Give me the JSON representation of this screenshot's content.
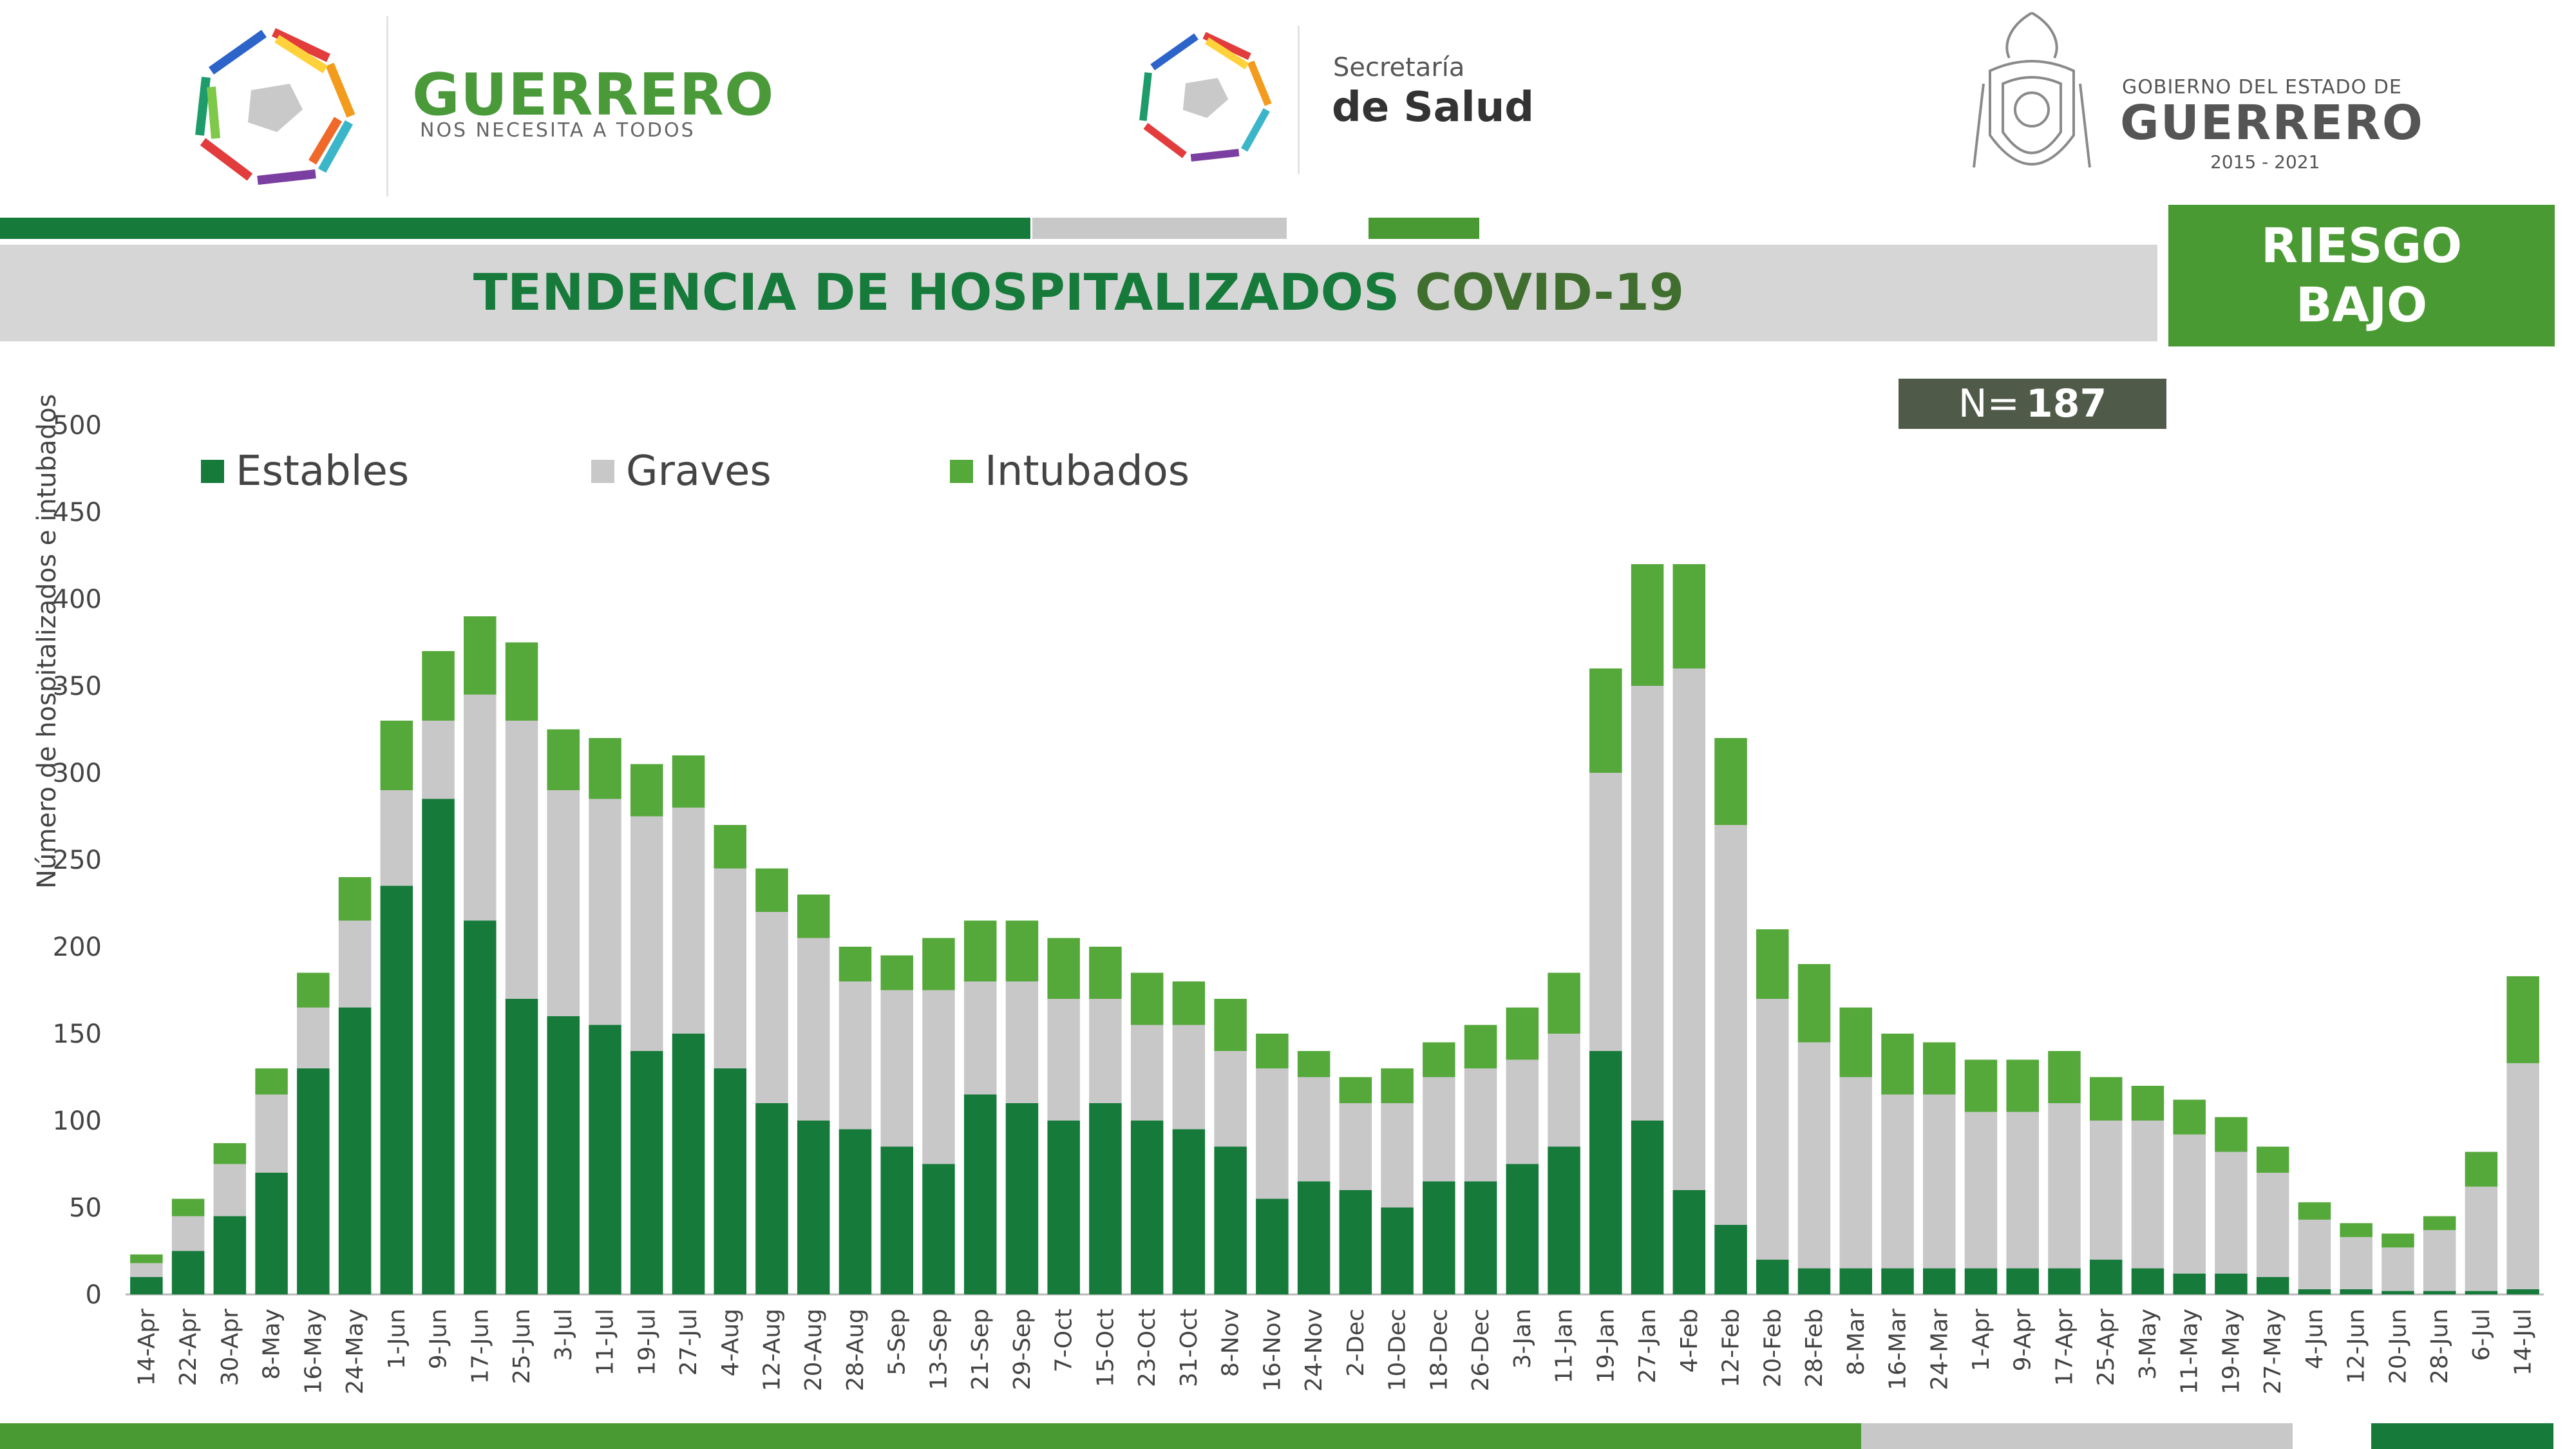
{
  "header": {
    "brand_title": "GUERRERO",
    "brand_subtitle": "NOS NECESITA A TODOS",
    "salud_line1": "Secretaría",
    "salud_line2": "de Salud",
    "gob_line1": "GOBIERNO DEL ESTADO DE",
    "gob_line2": "GUERRERO",
    "gob_years": "2015 - 2021"
  },
  "title_part1": "TENDENCIA DE HOSPITALIZADOS",
  "title_part2": "COVID-19",
  "risk_line1": "RIESGO",
  "risk_line2": "BAJO",
  "n_label": "N=",
  "n_value": "187",
  "colors": {
    "estables": "#157a3a",
    "graves": "#c8c8c8",
    "intubados": "#55a83a",
    "title_band": "#d6d6d6",
    "risk": "#4a9a33"
  },
  "chart_data": {
    "type": "bar",
    "stacked": true,
    "ylabel": "Número de hospitalizados e intubados",
    "ylim": [
      0,
      500
    ],
    "yticks": [
      0,
      50,
      100,
      150,
      200,
      250,
      300,
      350,
      400,
      450,
      500
    ],
    "xtick_labels": [
      "14-Apr",
      "22-Apr",
      "30-Apr",
      "8-May",
      "16-May",
      "24-May",
      "1-Jun",
      "9-Jun",
      "17-Jun",
      "25-Jun",
      "3-Jul",
      "11-Jul",
      "19-Jul",
      "27-Jul",
      "4-Aug",
      "12-Aug",
      "20-Aug",
      "28-Aug",
      "5-Sep",
      "13-Sep",
      "21-Sep",
      "29-Sep",
      "7-Oct",
      "15-Oct",
      "23-Oct",
      "31-Oct",
      "8-Nov",
      "16-Nov",
      "24-Nov",
      "2-Dec",
      "10-Dec",
      "18-Dec",
      "26-Dec",
      "3-Jan",
      "11-Jan",
      "19-Jan",
      "27-Jan",
      "4-Feb",
      "12-Feb",
      "20-Feb",
      "28-Feb",
      "8-Mar",
      "16-Mar",
      "24-Mar",
      "1-Apr",
      "9-Apr",
      "17-Apr",
      "25-Apr",
      "3-May",
      "11-May",
      "19-May",
      "27-May",
      "4-Jun",
      "12-Jun",
      "20-Jun",
      "28-Jun",
      "6-Jul",
      "14-Jul"
    ],
    "legend": [
      "Estables",
      "Graves",
      "Intubados"
    ],
    "legend_position": "top-left",
    "series": [
      {
        "name": "Estables",
        "values": [
          10,
          25,
          45,
          70,
          130,
          165,
          235,
          285,
          215,
          170,
          160,
          155,
          140,
          150,
          130,
          110,
          100,
          95,
          85,
          75,
          115,
          110,
          100,
          110,
          100,
          95,
          85,
          55,
          65,
          60,
          50,
          65,
          65,
          75,
          85,
          140,
          100,
          60,
          40,
          20,
          15,
          15,
          15,
          15,
          15,
          15,
          15,
          20,
          15,
          12,
          12,
          10,
          3,
          3,
          2,
          2,
          2,
          3
        ]
      },
      {
        "name": "Graves",
        "values": [
          8,
          20,
          30,
          45,
          35,
          50,
          55,
          45,
          130,
          160,
          130,
          130,
          135,
          130,
          115,
          110,
          105,
          85,
          90,
          100,
          65,
          70,
          70,
          60,
          55,
          60,
          55,
          75,
          60,
          50,
          60,
          60,
          65,
          60,
          65,
          160,
          250,
          300,
          230,
          150,
          130,
          110,
          100,
          100,
          90,
          90,
          95,
          80,
          85,
          80,
          70,
          60,
          40,
          30,
          25,
          35,
          60,
          130
        ]
      },
      {
        "name": "Intubados",
        "values": [
          5,
          10,
          12,
          15,
          20,
          25,
          40,
          40,
          45,
          45,
          35,
          35,
          30,
          30,
          25,
          25,
          25,
          20,
          20,
          30,
          35,
          35,
          35,
          30,
          30,
          25,
          30,
          20,
          15,
          15,
          20,
          20,
          25,
          30,
          35,
          60,
          70,
          60,
          50,
          40,
          45,
          40,
          35,
          30,
          30,
          30,
          30,
          25,
          20,
          20,
          20,
          15,
          10,
          8,
          8,
          8,
          20,
          50
        ]
      }
    ]
  }
}
